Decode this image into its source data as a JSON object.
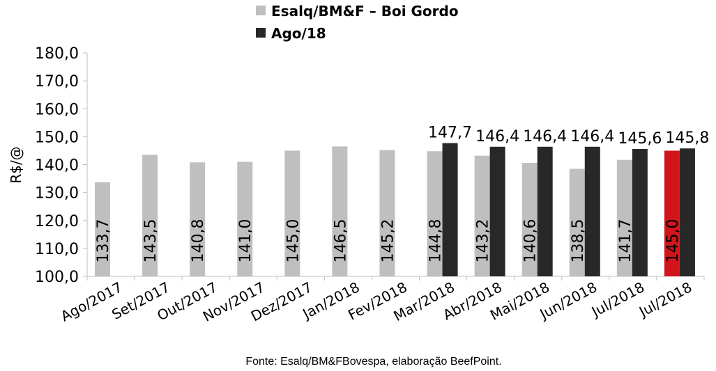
{
  "chart_data": {
    "type": "bar",
    "title": "",
    "xlabel": "",
    "ylabel": "R$/@",
    "ylim": [
      100,
      180
    ],
    "yticks": [
      "100,0",
      "110,0",
      "120,0",
      "130,0",
      "140,0",
      "150,0",
      "160,0",
      "170,0",
      "180,0"
    ],
    "legend_placement": "top-center",
    "categories": [
      "Ago/2017",
      "Set/2017",
      "Out/2017",
      "Nov/2017",
      "Dez/2017",
      "Jan/2018",
      "Fev/2018",
      "Mar/2018",
      "Abr/2018",
      "Mai/2018",
      "Jun/2018",
      "Jul/2018",
      "Jul/2018"
    ],
    "series": [
      {
        "name": "Esalq/BM&F – Boi Gordo",
        "color": "#bfbfbf",
        "highlight_color": "#d0161a",
        "highlight_index": 12,
        "values": [
          133.7,
          143.5,
          140.8,
          141.0,
          145.0,
          146.5,
          145.2,
          144.8,
          143.2,
          140.6,
          138.5,
          141.7,
          145.0
        ],
        "labels": [
          "133,7",
          "143,5",
          "140,8",
          "141,0",
          "145,0",
          "146,5",
          "145,2",
          "144,8",
          "143,2",
          "140,6",
          "138,5",
          "141,7",
          "145,0"
        ]
      },
      {
        "name": "Ago/18",
        "color": "#282828",
        "values": [
          null,
          null,
          null,
          null,
          null,
          null,
          null,
          147.7,
          146.4,
          146.4,
          146.4,
          145.6,
          145.8
        ],
        "labels": [
          null,
          null,
          null,
          null,
          null,
          null,
          null,
          "147,7",
          "146,4",
          "146,4",
          "146,4",
          "145,6",
          "145,8"
        ]
      }
    ],
    "source": "Fonte: Esalq/BM&FBovespa, elaboração BeefPoint."
  }
}
